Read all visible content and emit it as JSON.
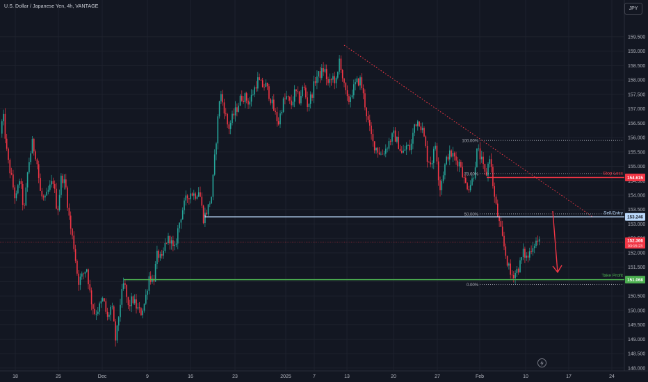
{
  "header": {
    "symbol_title": "U.S. Dollar / Japanese Yen, 4h, VANTAGE",
    "currency": "JPY"
  },
  "chart_data": {
    "type": "candlestick",
    "ylim": [
      147.9,
      160.1
    ],
    "y_ticks": [
      "148.000",
      "148.500",
      "149.000",
      "149.500",
      "150.000",
      "150.500",
      "151.000",
      "151.500",
      "152.000",
      "152.500",
      "153.000",
      "153.500",
      "154.000",
      "154.500",
      "155.000",
      "155.500",
      "156.000",
      "156.500",
      "157.000",
      "157.500",
      "158.000",
      "158.500",
      "159.000",
      "159.500"
    ],
    "x_ticks": [
      "18",
      "25",
      "Dec",
      "9",
      "16",
      "23",
      "2025",
      "7",
      "13",
      "20",
      "27",
      "Feb",
      "10",
      "17",
      "24"
    ],
    "price_path": [
      [
        0,
        155.8
      ],
      [
        6,
        156.8
      ],
      [
        12,
        155.3
      ],
      [
        18,
        154.6
      ],
      [
        24,
        153.8
      ],
      [
        30,
        154.6
      ],
      [
        36,
        153.4
      ],
      [
        42,
        155.0
      ],
      [
        48,
        155.8
      ],
      [
        54,
        155.3
      ],
      [
        60,
        154.0
      ],
      [
        66,
        153.8
      ],
      [
        72,
        154.2
      ],
      [
        78,
        154.5
      ],
      [
        84,
        153.4
      ],
      [
        90,
        154.7
      ],
      [
        96,
        154.3
      ],
      [
        102,
        153.0
      ],
      [
        108,
        152.2
      ],
      [
        114,
        151.0
      ],
      [
        120,
        151.2
      ],
      [
        126,
        151.5
      ],
      [
        132,
        150.4
      ],
      [
        138,
        149.9
      ],
      [
        144,
        150.1
      ],
      [
        150,
        150.4
      ],
      [
        156,
        149.7
      ],
      [
        162,
        150.2
      ],
      [
        168,
        148.9
      ],
      [
        174,
        150.2
      ],
      [
        180,
        151.0
      ],
      [
        186,
        150.1
      ],
      [
        192,
        150.4
      ],
      [
        198,
        150.1
      ],
      [
        204,
        149.9
      ],
      [
        210,
        150.3
      ],
      [
        216,
        151.2
      ],
      [
        222,
        151.0
      ],
      [
        228,
        152.0
      ],
      [
        234,
        151.7
      ],
      [
        240,
        152.4
      ],
      [
        246,
        152.5
      ],
      [
        252,
        152.0
      ],
      [
        258,
        152.9
      ],
      [
        264,
        153.5
      ],
      [
        270,
        153.9
      ],
      [
        276,
        154.1
      ],
      [
        282,
        154.0
      ],
      [
        288,
        154.2
      ],
      [
        294,
        153.2
      ],
      [
        300,
        153.5
      ],
      [
        306,
        154.0
      ],
      [
        312,
        155.8
      ],
      [
        318,
        157.6
      ],
      [
        324,
        157.0
      ],
      [
        330,
        156.3
      ],
      [
        336,
        156.7
      ],
      [
        342,
        157.0
      ],
      [
        348,
        157.4
      ],
      [
        354,
        157.4
      ],
      [
        360,
        157.2
      ],
      [
        366,
        157.6
      ],
      [
        372,
        158.0
      ],
      [
        378,
        157.8
      ],
      [
        384,
        157.8
      ],
      [
        390,
        157.4
      ],
      [
        396,
        156.9
      ],
      [
        402,
        156.5
      ],
      [
        408,
        157.2
      ],
      [
        414,
        157.4
      ],
      [
        420,
        157.1
      ],
      [
        426,
        157.6
      ],
      [
        432,
        157.3
      ],
      [
        438,
        157.8
      ],
      [
        444,
        157.1
      ],
      [
        450,
        157.5
      ],
      [
        456,
        158.1
      ],
      [
        462,
        158.2
      ],
      [
        468,
        158.4
      ],
      [
        474,
        157.8
      ],
      [
        480,
        158.1
      ],
      [
        486,
        157.9
      ],
      [
        490,
        158.8
      ],
      [
        496,
        157.8
      ],
      [
        502,
        157.2
      ],
      [
        508,
        157.6
      ],
      [
        514,
        157.9
      ],
      [
        520,
        158.0
      ],
      [
        526,
        157.2
      ],
      [
        532,
        156.4
      ],
      [
        538,
        155.8
      ],
      [
        544,
        155.6
      ],
      [
        550,
        155.4
      ],
      [
        556,
        155.6
      ],
      [
        562,
        155.9
      ],
      [
        568,
        156.1
      ],
      [
        574,
        155.8
      ],
      [
        580,
        155.4
      ],
      [
        586,
        155.7
      ],
      [
        592,
        155.6
      ],
      [
        598,
        156.5
      ],
      [
        604,
        156.6
      ],
      [
        610,
        156.2
      ],
      [
        616,
        155.3
      ],
      [
        622,
        155.1
      ],
      [
        628,
        155.8
      ],
      [
        634,
        154.2
      ],
      [
        640,
        154.9
      ],
      [
        646,
        155.4
      ],
      [
        652,
        155.4
      ],
      [
        658,
        155.2
      ],
      [
        664,
        155.1
      ],
      [
        670,
        154.4
      ],
      [
        676,
        154.3
      ],
      [
        682,
        154.6
      ],
      [
        688,
        155.6
      ],
      [
        694,
        155.2
      ],
      [
        700,
        154.6
      ],
      [
        706,
        155.4
      ],
      [
        712,
        154.0
      ],
      [
        718,
        153.2
      ],
      [
        724,
        152.5
      ],
      [
        730,
        151.8
      ],
      [
        736,
        151.2
      ],
      [
        742,
        151.3
      ],
      [
        748,
        151.5
      ],
      [
        754,
        152.0
      ],
      [
        760,
        151.8
      ],
      [
        766,
        152.2
      ],
      [
        772,
        152.4
      ],
      [
        777,
        152.37
      ]
    ],
    "levels": [
      {
        "name": "stop-loss",
        "label": "Stop Loss",
        "price": 154.615,
        "price_label": "154.615",
        "color": "#f23645"
      },
      {
        "name": "sell-entry",
        "label": "Sell Entry",
        "price": 153.246,
        "price_label": "153.246",
        "color": "#bbd9fb"
      },
      {
        "name": "take-profit",
        "label": "Take Profit",
        "price": 151.068,
        "price_label": "151.068",
        "color": "#4caf50"
      }
    ],
    "fib_levels": [
      {
        "label": "100.00%",
        "price": 155.9
      },
      {
        "label": "78.60%",
        "price": 154.75
      },
      {
        "label": "50.00%",
        "price": 153.35
      },
      {
        "label": "0.00%",
        "price": 150.9
      }
    ],
    "current_price": {
      "price": 152.366,
      "label": "152.366",
      "countdown": "03:15:23",
      "color": "#f23645"
    },
    "colors": {
      "up": "#26a69a",
      "down": "#f23645",
      "background": "#131722",
      "trendline": "#f23645",
      "arrow": "#f23645"
    }
  }
}
